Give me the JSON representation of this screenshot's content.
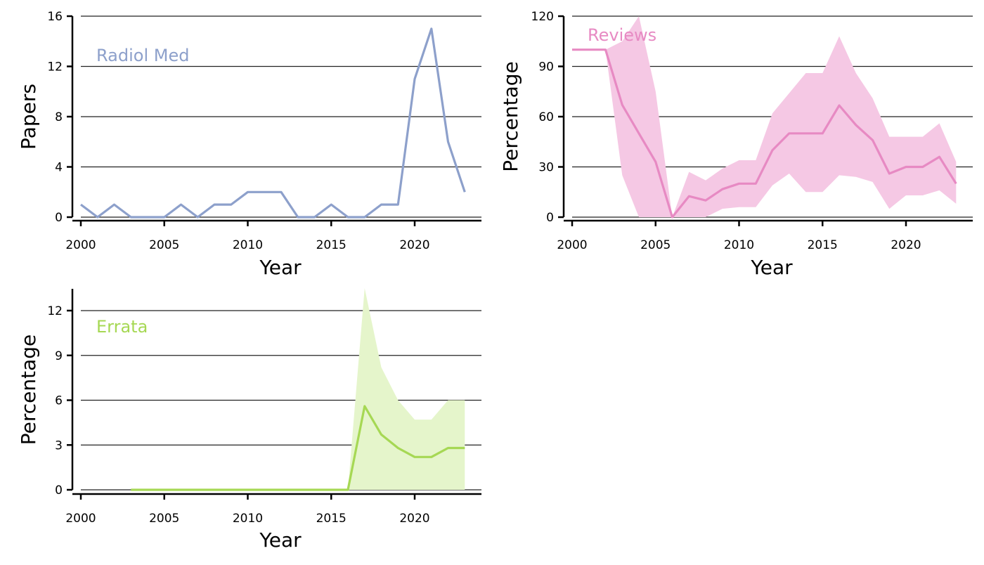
{
  "chart_data": [
    {
      "type": "line",
      "label": "Radiol Med",
      "color": "#8da0cb",
      "xlabel": "Year",
      "ylabel": "Papers",
      "xlim": [
        2000,
        2024
      ],
      "ylim": [
        0,
        16
      ],
      "xticks": [
        2000,
        2005,
        2010,
        2015,
        2020
      ],
      "yticks": [
        0,
        4,
        8,
        12,
        16
      ],
      "grid": "horizontal",
      "x": [
        2000,
        2001,
        2002,
        2003,
        2004,
        2005,
        2006,
        2007,
        2008,
        2009,
        2010,
        2011,
        2012,
        2013,
        2014,
        2015,
        2016,
        2017,
        2018,
        2019,
        2020,
        2021,
        2022,
        2023
      ],
      "y": [
        1,
        0,
        1,
        0,
        0,
        0,
        1,
        0,
        1,
        1,
        2,
        2,
        2,
        0,
        0,
        1,
        0,
        0,
        1,
        1,
        11,
        15,
        6,
        2
      ]
    },
    {
      "type": "line",
      "label": "Reviews",
      "color": "#e78ac3",
      "band_color": "#f5c8e4",
      "xlabel": "Year",
      "ylabel": "Percentage",
      "xlim": [
        2000,
        2024
      ],
      "ylim": [
        0,
        120
      ],
      "xticks": [
        2000,
        2005,
        2010,
        2015,
        2020
      ],
      "yticks": [
        0,
        30,
        60,
        90,
        120
      ],
      "grid": "horizontal",
      "x": [
        2000,
        2001,
        2002,
        2003,
        2004,
        2005,
        2006,
        2007,
        2008,
        2009,
        2010,
        2011,
        2012,
        2013,
        2014,
        2015,
        2016,
        2017,
        2018,
        2019,
        2020,
        2021,
        2022,
        2023
      ],
      "y": [
        100,
        100,
        100,
        67,
        50,
        33,
        0,
        12.5,
        10,
        16.7,
        20,
        20,
        40,
        50,
        50,
        50,
        66.7,
        55,
        46,
        26,
        30,
        30,
        36,
        20
      ],
      "lower": [
        100,
        100,
        100,
        25,
        0,
        0,
        0,
        0,
        0,
        5,
        6,
        6,
        19,
        26,
        15,
        15,
        25,
        24,
        21,
        5,
        13,
        13,
        16,
        8
      ],
      "upper": [
        100,
        100,
        100,
        105,
        121,
        75,
        0,
        27,
        22,
        29,
        34,
        34,
        62,
        74,
        86,
        86,
        108,
        86,
        71,
        48,
        48,
        48,
        56,
        33
      ]
    },
    {
      "type": "line",
      "label": "Errata",
      "color": "#a6d854",
      "band_color": "#e5f5cb",
      "xlabel": "Year",
      "ylabel": "Percentage",
      "xlim": [
        2000,
        2024
      ],
      "ylim": [
        0,
        13.5
      ],
      "xticks": [
        2000,
        2005,
        2010,
        2015,
        2020
      ],
      "yticks": [
        0,
        3,
        6,
        9,
        12
      ],
      "grid": "horizontal",
      "x": [
        2003,
        2004,
        2005,
        2006,
        2007,
        2008,
        2009,
        2010,
        2011,
        2012,
        2013,
        2014,
        2015,
        2016,
        2017,
        2018,
        2019,
        2020,
        2021,
        2022,
        2023
      ],
      "y": [
        0,
        0,
        0,
        0,
        0,
        0,
        0,
        0,
        0,
        0,
        0,
        0,
        0,
        0,
        5.6,
        3.7,
        2.8,
        2.2,
        2.2,
        2.8,
        2.8
      ],
      "lower": [
        0,
        0,
        0,
        0,
        0,
        0,
        0,
        0,
        0,
        0,
        0,
        0,
        0,
        0,
        0,
        0,
        0,
        0,
        0,
        0,
        0
      ],
      "upper": [
        0,
        0,
        0,
        0,
        0,
        0,
        0,
        0,
        0,
        0,
        0,
        0,
        0,
        0,
        13.5,
        8.2,
        6.0,
        4.7,
        4.7,
        6.0,
        6.0
      ]
    }
  ]
}
